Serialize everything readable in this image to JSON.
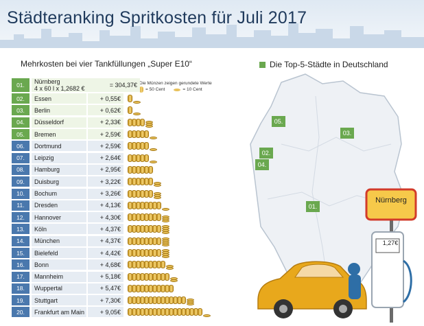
{
  "title": "Städteranking Spritkosten für Juli 2017",
  "subtitle": "Mehrkosten bei vier Tankfüllungen „Super E10“",
  "legend_top": "Die Top-5-Städte in Deutschland",
  "coin_legend": {
    "note": "Die Münzen zeigen gerundete Werte",
    "big": "= 50 Cent",
    "small": "= 10 Cent"
  },
  "first_row": {
    "rank": "01.",
    "city": "Nürnberg",
    "formula": "4 x 60 l x 1,2682 €",
    "value": "= 304,37€"
  },
  "rows": [
    {
      "rank": "02.",
      "city": "Essen",
      "value": "+ 0,55€",
      "top": true
    },
    {
      "rank": "03.",
      "city": "Berlin",
      "value": "+ 0,62€",
      "top": true
    },
    {
      "rank": "04.",
      "city": "Düsseldorf",
      "value": "+ 2,33€",
      "top": true
    },
    {
      "rank": "05.",
      "city": "Bremen",
      "value": "+ 2,59€",
      "top": true
    },
    {
      "rank": "06.",
      "city": "Dortmund",
      "value": "+ 2,59€",
      "top": false
    },
    {
      "rank": "07.",
      "city": "Leipzig",
      "value": "+ 2,64€",
      "top": false
    },
    {
      "rank": "08.",
      "city": "Hamburg",
      "value": "+ 2,95€",
      "top": false
    },
    {
      "rank": "09.",
      "city": "Duisburg",
      "value": "+ 3,22€",
      "top": false
    },
    {
      "rank": "10.",
      "city": "Bochum",
      "value": "+ 3,26€",
      "top": false
    },
    {
      "rank": "11.",
      "city": "Dresden",
      "value": "+ 4,13€",
      "top": false
    },
    {
      "rank": "12.",
      "city": "Hannover",
      "value": "+ 4,30€",
      "top": false
    },
    {
      "rank": "13.",
      "city": "Köln",
      "value": "+ 4,37€",
      "top": false
    },
    {
      "rank": "14.",
      "city": "München",
      "value": "+ 4,37€",
      "top": false
    },
    {
      "rank": "15.",
      "city": "Bielefeld",
      "value": "+ 4,42€",
      "top": false
    },
    {
      "rank": "16.",
      "city": "Bonn",
      "value": "+ 4,68€",
      "top": false
    },
    {
      "rank": "17.",
      "city": "Mannheim",
      "value": "+ 5,18€",
      "top": false
    },
    {
      "rank": "18.",
      "city": "Wuppertal",
      "value": "+ 5,47€",
      "top": false
    },
    {
      "rank": "19.",
      "city": "Stuttgart",
      "value": "+ 7,30€",
      "top": false
    },
    {
      "rank": "20.",
      "city": "Frankfurt am Main",
      "value": "+ 9,05€",
      "top": false
    }
  ],
  "map_markers": [
    {
      "label": "05."
    },
    {
      "label": "03."
    },
    {
      "label": "02."
    },
    {
      "label": "04."
    },
    {
      "label": "01."
    }
  ],
  "sign_label": "Nürnberg",
  "pump_price": "1,27€",
  "colors": {
    "rank_blue": "#4a78ad",
    "top_green": "#6aa84f",
    "coin_gold": "#e8c15a",
    "car_yellow": "#e8a81c"
  }
}
